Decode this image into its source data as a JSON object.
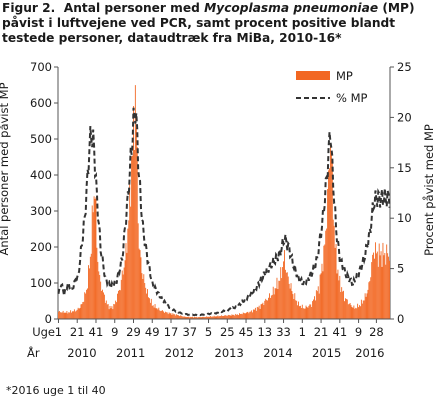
{
  "figure": {
    "prefix": "Figur 2.",
    "title_part1": "Antal personer med",
    "title_italic": "Mycoplasma pneumoniae",
    "title_part2": "(MP) påvist i luftvejene ved PCR, samt procent positive blandt testede personer, dataudtræk fra MiBa, 2010-16*",
    "footnote": "*2016 uge 1 til 40"
  },
  "chart_data": {
    "type": "bar",
    "title": "Figur 2. Antal personer med Mycoplasma pneumoniae (MP) påvist i luftvejene ved PCR, samt procent positive blandt testede personer, dataudtræk fra MiBa, 2010-16*",
    "ylabel": "Antal personer med påvist MP",
    "y2label": "Procent påvist med MP",
    "ylim": [
      0,
      700
    ],
    "y2lim": [
      0,
      25
    ],
    "yticks": [
      0,
      100,
      200,
      300,
      400,
      500,
      600,
      700
    ],
    "y2ticks": [
      0,
      5,
      10,
      15,
      20,
      25
    ],
    "x_row_label": "Uge",
    "year_row_label": "År",
    "week_ticks": [
      "1",
      "21",
      "41",
      "9",
      "29",
      "49",
      "17",
      "37",
      "5",
      "25",
      "45",
      "13",
      "33",
      "1",
      "21",
      "41",
      "9",
      "28"
    ],
    "week_tick_index": [
      0,
      20,
      40,
      60,
      80,
      100,
      120,
      140,
      160,
      180,
      200,
      220,
      240,
      260,
      280,
      300,
      320,
      339
    ],
    "years": [
      {
        "label": "2010",
        "center_index": 25
      },
      {
        "label": "2011",
        "center_index": 77
      },
      {
        "label": "2012",
        "center_index": 129
      },
      {
        "label": "2013",
        "center_index": 182
      },
      {
        "label": "2014",
        "center_index": 234
      },
      {
        "label": "2015",
        "center_index": 286
      },
      {
        "label": "2016",
        "center_index": 332
      }
    ],
    "legend": {
      "bars": "MP",
      "line": "% MP",
      "placement": "top-right"
    },
    "colors": {
      "bars": "#f26722",
      "line": "#333333"
    },
    "series": [
      {
        "name": "MP",
        "axis": "left",
        "kind": "bar",
        "week_count": 354,
        "keypoints": [
          [
            0,
            20
          ],
          [
            10,
            18
          ],
          [
            20,
            25
          ],
          [
            25,
            40
          ],
          [
            30,
            80
          ],
          [
            34,
            170
          ],
          [
            37,
            310
          ],
          [
            39,
            380
          ],
          [
            41,
            200
          ],
          [
            44,
            110
          ],
          [
            48,
            70
          ],
          [
            52,
            40
          ],
          [
            56,
            30
          ],
          [
            60,
            40
          ],
          [
            66,
            90
          ],
          [
            72,
            180
          ],
          [
            76,
            320
          ],
          [
            78,
            440
          ],
          [
            80,
            500
          ],
          [
            82,
            640
          ],
          [
            84,
            420
          ],
          [
            86,
            200
          ],
          [
            90,
            120
          ],
          [
            95,
            70
          ],
          [
            100,
            40
          ],
          [
            108,
            25
          ],
          [
            115,
            18
          ],
          [
            125,
            12
          ],
          [
            135,
            6
          ],
          [
            150,
            5
          ],
          [
            170,
            8
          ],
          [
            190,
            12
          ],
          [
            205,
            20
          ],
          [
            215,
            35
          ],
          [
            228,
            70
          ],
          [
            236,
            110
          ],
          [
            241,
            170
          ],
          [
            244,
            120
          ],
          [
            250,
            70
          ],
          [
            256,
            40
          ],
          [
            262,
            30
          ],
          [
            270,
            40
          ],
          [
            278,
            90
          ],
          [
            284,
            200
          ],
          [
            288,
            380
          ],
          [
            290,
            520
          ],
          [
            292,
            380
          ],
          [
            295,
            200
          ],
          [
            299,
            110
          ],
          [
            305,
            60
          ],
          [
            311,
            40
          ],
          [
            316,
            30
          ],
          [
            322,
            40
          ],
          [
            327,
            60
          ],
          [
            331,
            90
          ],
          [
            334,
            150
          ],
          [
            337,
            200
          ],
          [
            339,
            180
          ]
        ]
      },
      {
        "name": "% MP",
        "axis": "right",
        "kind": "line",
        "keypoints": [
          [
            0,
            2.5
          ],
          [
            3,
            3.5
          ],
          [
            6,
            2.5
          ],
          [
            10,
            3.5
          ],
          [
            14,
            2.8
          ],
          [
            18,
            3.8
          ],
          [
            21,
            4.2
          ],
          [
            25,
            7.5
          ],
          [
            28,
            10
          ],
          [
            31,
            14
          ],
          [
            33,
            17
          ],
          [
            35,
            18.5
          ],
          [
            38,
            17
          ],
          [
            41,
            12
          ],
          [
            45,
            7
          ],
          [
            50,
            4
          ],
          [
            56,
            3.2
          ],
          [
            62,
            3.8
          ],
          [
            68,
            6
          ],
          [
            74,
            12
          ],
          [
            78,
            17
          ],
          [
            80,
            19.5
          ],
          [
            82,
            21
          ],
          [
            84,
            18
          ],
          [
            86,
            14
          ],
          [
            90,
            9
          ],
          [
            95,
            6
          ],
          [
            100,
            3.5
          ],
          [
            110,
            2
          ],
          [
            120,
            1
          ],
          [
            130,
            0.6
          ],
          [
            140,
            0.4
          ],
          [
            150,
            0.4
          ],
          [
            160,
            0.5
          ],
          [
            170,
            0.6
          ],
          [
            180,
            0.9
          ],
          [
            190,
            1.2
          ],
          [
            200,
            2
          ],
          [
            210,
            3
          ],
          [
            220,
            4.5
          ],
          [
            228,
            5.5
          ],
          [
            236,
            6.5
          ],
          [
            241,
            8
          ],
          [
            246,
            7
          ],
          [
            250,
            5.5
          ],
          [
            256,
            4
          ],
          [
            262,
            3.5
          ],
          [
            270,
            4.5
          ],
          [
            276,
            6
          ],
          [
            282,
            10
          ],
          [
            287,
            15
          ],
          [
            290,
            19
          ],
          [
            292,
            15
          ],
          [
            296,
            9
          ],
          [
            300,
            6
          ],
          [
            306,
            4.5
          ],
          [
            314,
            3.5
          ],
          [
            320,
            4.5
          ],
          [
            326,
            6
          ],
          [
            332,
            8.5
          ],
          [
            336,
            11.5
          ],
          [
            339,
            12
          ]
        ]
      }
    ]
  }
}
